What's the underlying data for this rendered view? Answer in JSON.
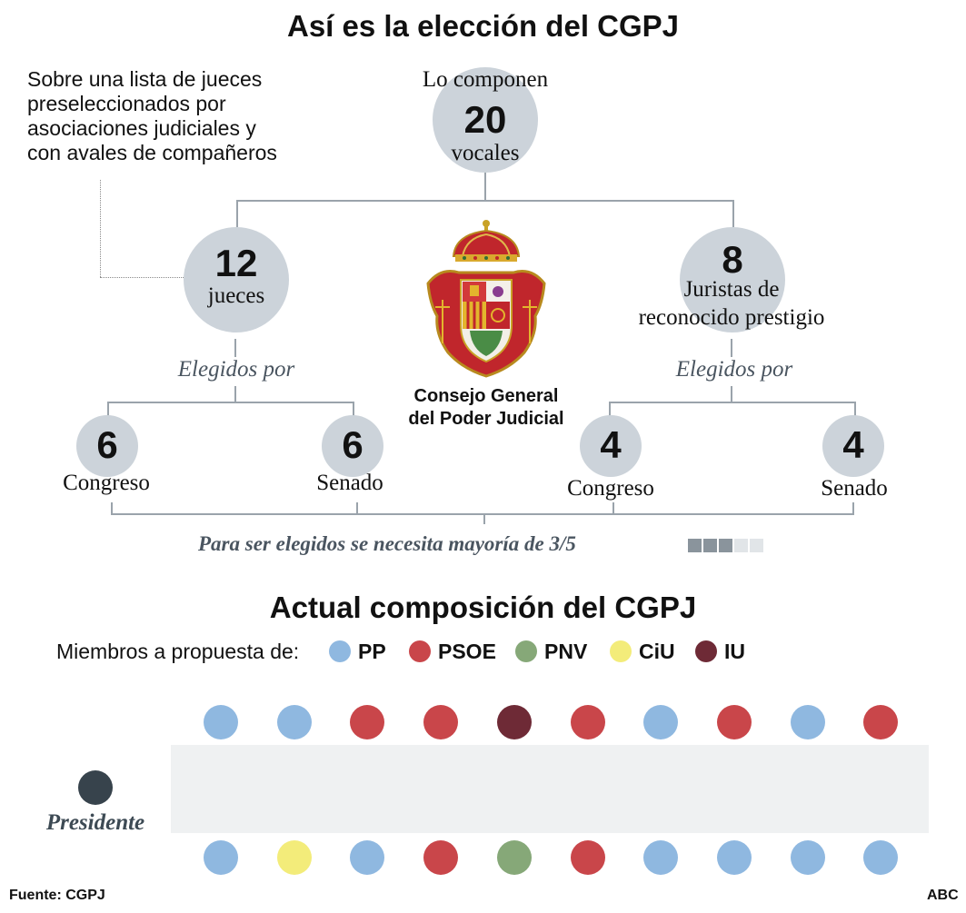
{
  "title": "Así es la elección del CGPJ",
  "intro_note": [
    "Sobre una lista de jueces",
    "preseleccionados por",
    "asociaciones judiciales y",
    "con avales de compañeros"
  ],
  "total": {
    "top": "Lo componen",
    "number": "20",
    "bottom": "vocales"
  },
  "judges": {
    "number": "12",
    "label": "jueces",
    "elected_by": "Elegidos por",
    "congreso": {
      "number": "6",
      "label": "Congreso"
    },
    "senado": {
      "number": "6",
      "label": "Senado"
    }
  },
  "jurists": {
    "number": "8",
    "label_line1": "Juristas de",
    "label_line2": "reconocido prestigio",
    "elected_by": "Elegidos por",
    "congreso": {
      "number": "4",
      "label": "Congreso"
    },
    "senado": {
      "number": "4",
      "label": "Senado"
    }
  },
  "emblem": {
    "line1": "Consejo General",
    "line2": "del Poder Judicial"
  },
  "majority": {
    "text": "Para ser elegidos se necesita mayoría de 3/5",
    "filled": 3,
    "total": 5
  },
  "composition_title": "Actual composición del CGPJ",
  "legend": {
    "label": "Miembros a propuesta de:",
    "items": [
      {
        "name": "PP",
        "color": "#8fb8e0"
      },
      {
        "name": "PSOE",
        "color": "#c9464a"
      },
      {
        "name": "PNV",
        "color": "#86a878"
      },
      {
        "name": "CiU",
        "color": "#f3ec7a"
      },
      {
        "name": "IU",
        "color": "#6e2a36"
      }
    ]
  },
  "members_top": [
    "PP",
    "PP",
    "PSOE",
    "PSOE",
    "IU",
    "PSOE",
    "PP",
    "PSOE",
    "PP",
    "PSOE"
  ],
  "members_bottom": [
    "PP",
    "CiU",
    "PP",
    "PSOE",
    "PNV",
    "PSOE",
    "PP",
    "PP",
    "PP",
    "PP"
  ],
  "president": {
    "label": "Presidente",
    "color": "#37434c"
  },
  "source": "Fuente: CGPJ",
  "credit": "ABC"
}
